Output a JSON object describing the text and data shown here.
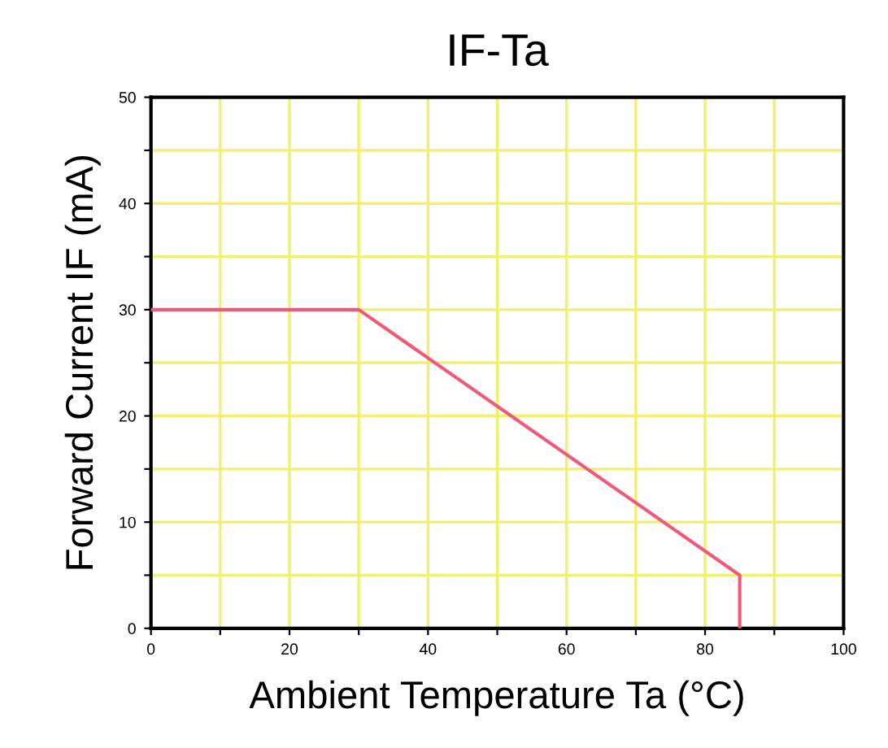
{
  "chart_data": {
    "type": "line",
    "title": "IF-Ta",
    "xlabel": "Ambient Temperature Ta (°C)",
    "ylabel": "Forward Current IF (mA)",
    "x": [
      0,
      30,
      85,
      85
    ],
    "series": [
      {
        "color": "#f05a78",
        "values": [
          30,
          30,
          5,
          0
        ]
      }
    ],
    "xlim": [
      0,
      100
    ],
    "ylim": [
      0,
      50
    ],
    "xticks": [
      0,
      {
        "value": 10,
        "label": null
      },
      20,
      {
        "value": 30,
        "label": null
      },
      40,
      {
        "value": 50,
        "label": null
      },
      60,
      {
        "value": 70,
        "label": null
      },
      80,
      {
        "value": 90,
        "label": null
      },
      100
    ],
    "yticks": [
      0,
      {
        "value": 5,
        "label": null
      },
      10,
      {
        "value": 15,
        "label": null
      },
      20,
      {
        "value": 25,
        "label": null
      },
      30,
      {
        "value": 35,
        "label": null
      },
      40,
      {
        "value": 45,
        "label": null
      },
      50
    ],
    "grid": true,
    "marker": "none",
    "line_style": "solid"
  }
}
